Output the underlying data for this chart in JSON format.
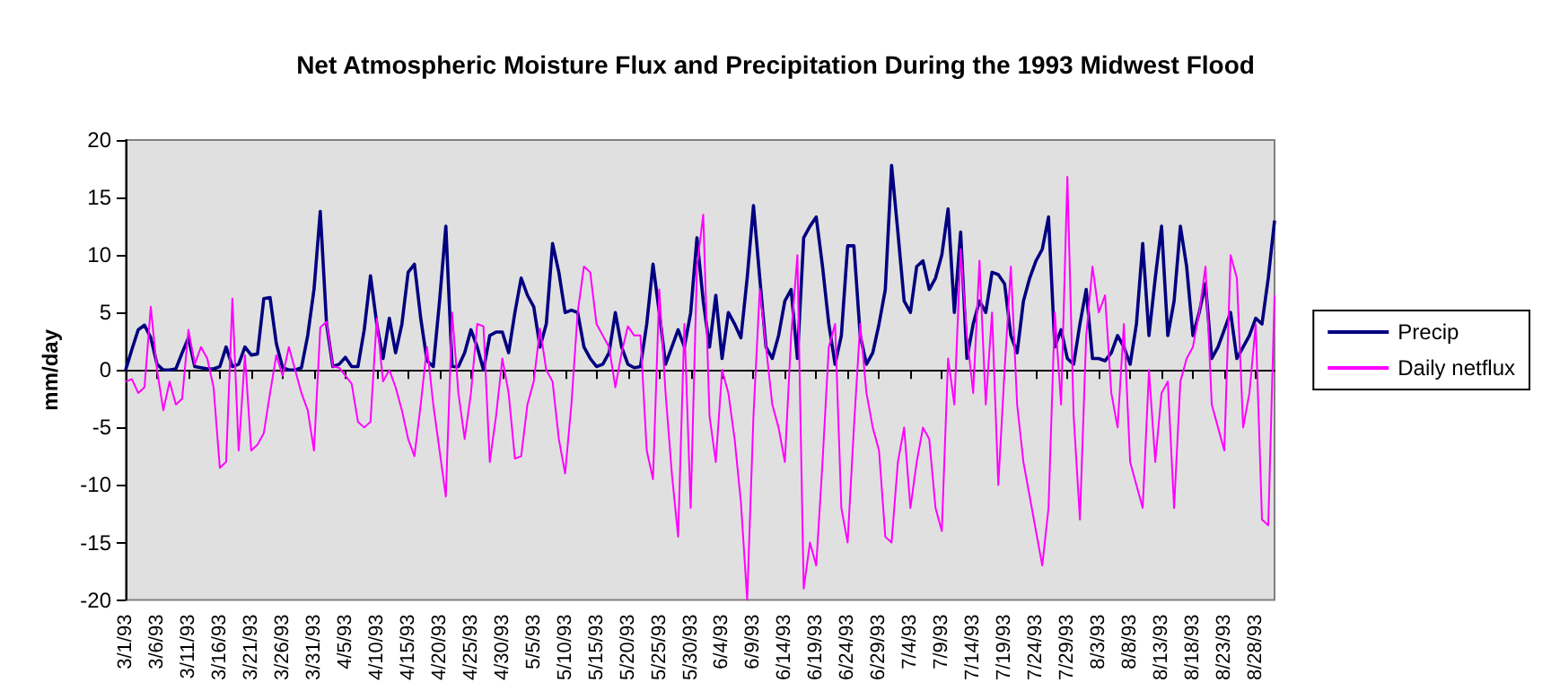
{
  "chart_data": {
    "type": "line",
    "title": "Net Atmospheric Moisture Flux and Precipitation During the 1993 Midwest Flood",
    "ylabel": "mm/day",
    "categories": [
      "3/1/93",
      null,
      null,
      null,
      null,
      "3/6/93",
      null,
      null,
      null,
      null,
      "3/11/93",
      null,
      null,
      null,
      null,
      "3/16/93",
      null,
      null,
      null,
      null,
      "3/21/93",
      null,
      null,
      null,
      null,
      "3/26/93",
      null,
      null,
      null,
      null,
      "3/31/93",
      null,
      null,
      null,
      null,
      "4/5/93",
      null,
      null,
      null,
      null,
      "4/10/93",
      null,
      null,
      null,
      null,
      "4/15/93",
      null,
      null,
      null,
      null,
      "4/20/93",
      null,
      null,
      null,
      null,
      "4/25/93",
      null,
      null,
      null,
      null,
      "4/30/93",
      null,
      null,
      null,
      null,
      "5/5/93",
      null,
      null,
      null,
      null,
      "5/10/93",
      null,
      null,
      null,
      null,
      "5/15/93",
      null,
      null,
      null,
      null,
      "5/20/93",
      null,
      null,
      null,
      null,
      "5/25/93",
      null,
      null,
      null,
      null,
      "5/30/93",
      null,
      null,
      null,
      null,
      "6/4/93",
      null,
      null,
      null,
      null,
      "6/9/93",
      null,
      null,
      null,
      null,
      "6/14/93",
      null,
      null,
      null,
      null,
      "6/19/93",
      null,
      null,
      null,
      null,
      "6/24/93",
      null,
      null,
      null,
      null,
      "6/29/93",
      null,
      null,
      null,
      null,
      "7/4/93",
      null,
      null,
      null,
      null,
      "7/9/93",
      null,
      null,
      null,
      null,
      "7/14/93",
      null,
      null,
      null,
      null,
      "7/19/93",
      null,
      null,
      null,
      null,
      "7/24/93",
      null,
      null,
      null,
      null,
      "7/29/93",
      null,
      null,
      null,
      null,
      "8/3/93",
      null,
      null,
      null,
      null,
      "8/8/93",
      null,
      null,
      null,
      null,
      "8/13/93",
      null,
      null,
      null,
      null,
      "8/18/93",
      null,
      null,
      null,
      null,
      "8/23/93",
      null,
      null,
      null,
      null,
      "8/28/93",
      null,
      null,
      null
    ],
    "series": [
      {
        "name": "Precip",
        "color": "#000080",
        "values": [
          0,
          1.8,
          3.5,
          3.9,
          2.8,
          0.5,
          0,
          0,
          0.1,
          1.5,
          2.8,
          0.3,
          0.2,
          0.1,
          0.1,
          0.3,
          2,
          0.3,
          0.5,
          2,
          1.3,
          1.4,
          6.2,
          6.3,
          2.3,
          0.2,
          0,
          0,
          0.2,
          3,
          7,
          13.8,
          4,
          0.3,
          0.5,
          1.1,
          0.3,
          0.3,
          3.5,
          8.2,
          4,
          1,
          4.5,
          1.5,
          4,
          8.5,
          9.2,
          4.5,
          0.8,
          0.3,
          6,
          12.5,
          0.3,
          0.3,
          1.5,
          3.5,
          2,
          0,
          3,
          3.3,
          3.3,
          1.5,
          5,
          8,
          6.5,
          5.5,
          2,
          4,
          11,
          8.5,
          5,
          5.2,
          5,
          2,
          1,
          0.3,
          0.5,
          1.5,
          5,
          2,
          0.5,
          0.2,
          0.3,
          4,
          9.2,
          5,
          0.5,
          2,
          3.5,
          2,
          5,
          11.5,
          6,
          2,
          6.5,
          1,
          5,
          4,
          2.8,
          8,
          14.3,
          8,
          2,
          1,
          3,
          6,
          7,
          1,
          11.5,
          12.5,
          13.3,
          9,
          4,
          0.5,
          3,
          10.8,
          10.8,
          3,
          0.5,
          1.5,
          4,
          7,
          17.8,
          12,
          6,
          5,
          9,
          9.5,
          7,
          8,
          10,
          14,
          5,
          12,
          1,
          4,
          6,
          5,
          8.5,
          8.3,
          7.5,
          3,
          1.5,
          6,
          8,
          9.5,
          10.5,
          13.3,
          2,
          3.5,
          1,
          0.5,
          4,
          7,
          1,
          1,
          0.8,
          1.5,
          3,
          2,
          0.5,
          4,
          11,
          3,
          8,
          12.5,
          3,
          6,
          12.5,
          9,
          3,
          5,
          7.5,
          1,
          2,
          3.5,
          5,
          1,
          2,
          3,
          4.5,
          4,
          8,
          13
        ]
      },
      {
        "name": "Daily netflux",
        "color": "#ff00ff",
        "values": [
          -1,
          -0.8,
          -2,
          -1.5,
          5.5,
          0,
          -3.5,
          -1,
          -3,
          -2.5,
          3.5,
          0.5,
          2,
          1,
          -1.5,
          -8.5,
          -8,
          6.2,
          -7,
          1.3,
          -7,
          -6.5,
          -5.5,
          -2,
          1.3,
          -0.5,
          2,
          0,
          -2,
          -3.5,
          -7,
          3.7,
          4.2,
          0.3,
          0.2,
          -0.5,
          -1.2,
          -4.5,
          -5,
          -4.5,
          4.5,
          -1,
          0,
          -1.5,
          -3.5,
          -6,
          -7.5,
          -3,
          2,
          -3,
          -7,
          -11,
          5,
          -2,
          -6,
          -2,
          4,
          3.8,
          -8,
          -4,
          1,
          -2,
          -7.7,
          -7.5,
          -3,
          -1,
          3.6,
          0,
          -1,
          -6,
          -9,
          -3,
          5,
          9,
          8.5,
          4,
          3,
          2,
          -1.5,
          1.5,
          3.8,
          3,
          3,
          -7,
          -9.5,
          7,
          -2,
          -9,
          -14.5,
          4,
          -12,
          9,
          13.5,
          -4,
          -8,
          0,
          -2,
          -6,
          -11.5,
          -20,
          -4,
          7,
          2,
          -3,
          -5,
          -8,
          3,
          10,
          -19,
          -15,
          -17,
          -8,
          2,
          4,
          -12,
          -15,
          -5,
          4,
          -2,
          -5,
          -7,
          -14.5,
          -15,
          -8,
          -5,
          -12,
          -8,
          -5,
          -6,
          -12,
          -14,
          1,
          -3,
          10.5,
          3,
          -2,
          9.5,
          -3,
          5,
          -10,
          0,
          9,
          -3,
          -8,
          -11,
          -14,
          -17,
          -12,
          5,
          -3,
          16.8,
          -4,
          -13,
          3,
          9,
          5,
          6.5,
          -2,
          -5,
          4,
          -8,
          -10,
          -12,
          0,
          -8,
          -2,
          -1,
          -12,
          -1,
          1,
          2,
          5,
          9,
          -3,
          -5,
          -7,
          10,
          8,
          -5,
          -2,
          4,
          -13,
          -13.5,
          6.5
        ]
      }
    ],
    "ylim": [
      -20,
      20
    ],
    "yticks": [
      -20,
      -15,
      -10,
      -5,
      0,
      5,
      10,
      15,
      20
    ],
    "legend": "right"
  }
}
